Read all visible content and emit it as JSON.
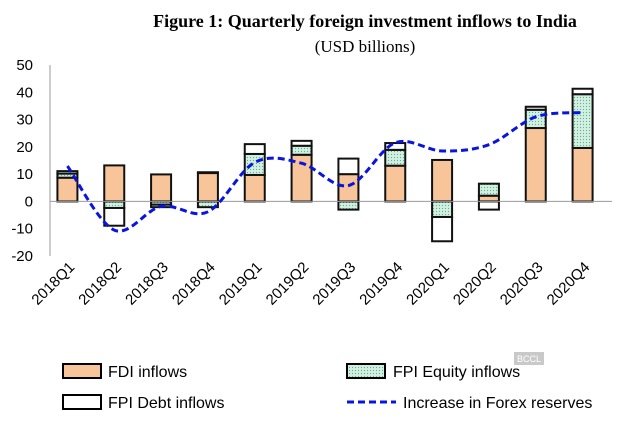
{
  "chart_data": {
    "type": "bar",
    "stacked": true,
    "title": "Figure 1: Quarterly foreign investment inflows to India",
    "subtitle": "(USD billions)",
    "xlabel": "",
    "ylabel": "",
    "ylim": [
      -20,
      50
    ],
    "yticks": [
      -20,
      -10,
      0,
      10,
      20,
      30,
      40,
      50
    ],
    "grid": false,
    "legend": "bottom",
    "categories": [
      "2018Q1",
      "2018Q2",
      "2018Q3",
      "2018Q4",
      "2019Q1",
      "2019Q2",
      "2019Q3",
      "2019Q4",
      "2020Q1",
      "2020Q2",
      "2020Q3",
      "2020Q4"
    ],
    "series": [
      {
        "name": "FDI inflows",
        "kind": "bar",
        "color": "#F8C49A",
        "values": [
          8.7,
          13.2,
          9.9,
          10.4,
          9.7,
          17.1,
          10.0,
          13.1,
          15.2,
          2.1,
          26.9,
          19.6
        ]
      },
      {
        "name": "FPI Equity inflows",
        "kind": "bar",
        "color": "#D2F0E2",
        "values": [
          1.5,
          -2.4,
          -1.2,
          -2.1,
          7.7,
          3.3,
          -3.0,
          5.8,
          -5.7,
          4.4,
          6.7,
          19.7
        ]
      },
      {
        "name": "FPI Debt inflows",
        "kind": "bar",
        "color": "#FFFFFF",
        "values": [
          0.9,
          -6.5,
          -0.9,
          0.3,
          3.6,
          1.8,
          5.7,
          2.5,
          -8.9,
          -3.0,
          1.1,
          2.0
        ]
      },
      {
        "name": "Increase in Forex reserves",
        "kind": "line",
        "color": "#0A14E0",
        "values": [
          13.0,
          -10.5,
          -1.8,
          -3.8,
          14.3,
          14.0,
          5.8,
          21.5,
          18.5,
          20.8,
          31.0,
          32.6
        ]
      }
    ]
  },
  "watermark": "BCCL"
}
